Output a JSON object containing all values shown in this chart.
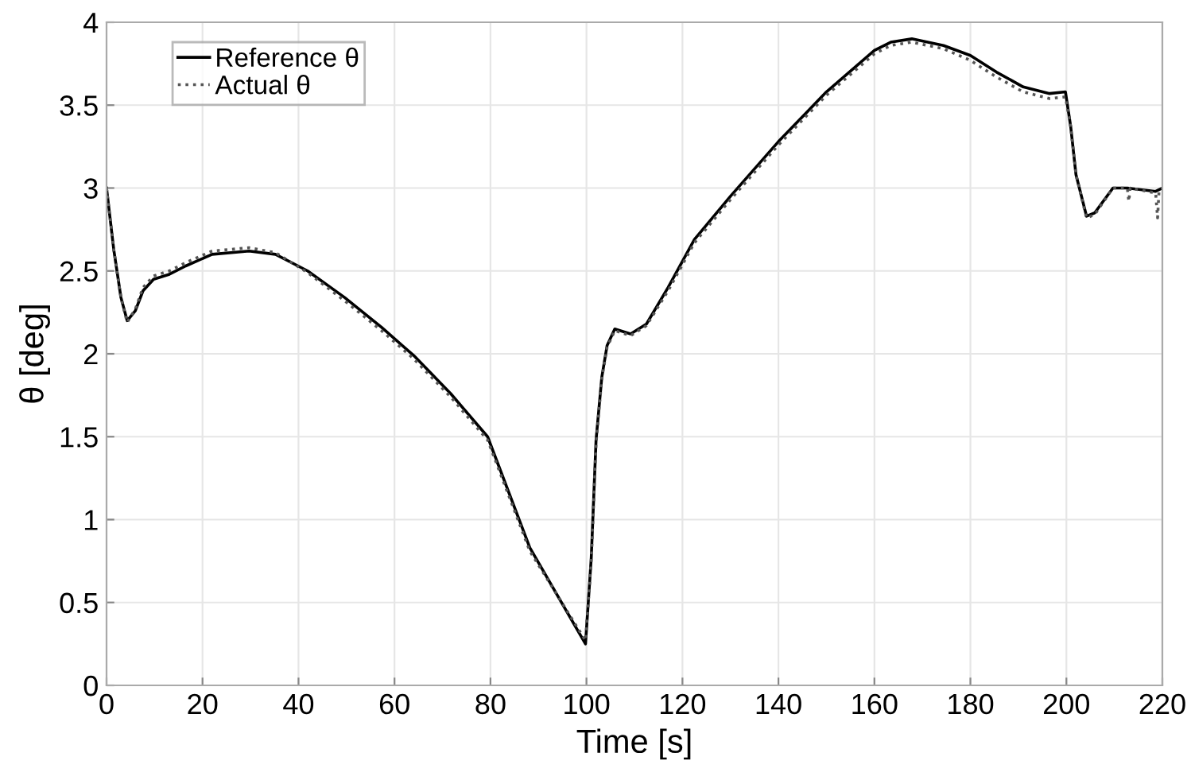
{
  "chart_data": {
    "type": "line",
    "xlabel": "Time [s]",
    "ylabel": "θ [deg]",
    "xlim": [
      0,
      220
    ],
    "ylim": [
      0,
      4
    ],
    "xticks": [
      0,
      20,
      40,
      60,
      80,
      100,
      120,
      140,
      160,
      180,
      200,
      220
    ],
    "yticks": [
      0,
      0.5,
      1,
      1.5,
      2,
      2.5,
      3,
      3.5,
      4
    ],
    "grid": true,
    "legend": "top left",
    "marker": "none",
    "series": [
      {
        "name": "Reference θ",
        "color": "#000000",
        "line_style": "solid",
        "x": [
          0,
          1.5,
          3,
          4.3,
          6,
          7.6,
          9.8,
          13.1,
          16.5,
          22,
          29.7,
          35.2,
          41.9,
          49.6,
          57.3,
          64,
          71.7,
          79.4,
          88.2,
          99.8,
          101,
          102,
          103.2,
          104.3,
          105.9,
          109.2,
          112.5,
          117,
          122.5,
          130,
          140,
          150,
          160,
          163.4,
          167.8,
          174.4,
          180,
          185.4,
          191,
          196.5,
          199.8,
          200.9,
          202,
          204.2,
          205.9,
          209.7,
          212.7,
          218.6,
          220
        ],
        "values": [
          3.0,
          2.63,
          2.34,
          2.2,
          2.26,
          2.38,
          2.45,
          2.48,
          2.53,
          2.6,
          2.62,
          2.6,
          2.5,
          2.34,
          2.16,
          1.99,
          1.76,
          1.5,
          0.83,
          0.25,
          0.77,
          1.48,
          1.86,
          2.05,
          2.15,
          2.12,
          2.18,
          2.4,
          2.69,
          2.95,
          3.28,
          3.58,
          3.83,
          3.88,
          3.9,
          3.86,
          3.8,
          3.7,
          3.61,
          3.57,
          3.58,
          3.37,
          3.08,
          2.83,
          2.85,
          3.0,
          3.0,
          2.98,
          3.0
        ]
      },
      {
        "name": "Actual θ",
        "color": "#555555",
        "line_style": "dotted",
        "x": [
          0,
          1.5,
          3,
          4.3,
          6,
          7.6,
          9.8,
          13.1,
          16.5,
          22,
          29.7,
          35.2,
          41.9,
          49.6,
          57.3,
          64,
          71.7,
          79.4,
          88.2,
          99.8,
          101,
          102,
          103.2,
          104.3,
          105.9,
          109.2,
          112.5,
          117,
          122.5,
          130,
          140,
          150,
          160,
          163.4,
          167.8,
          174.4,
          180,
          185.4,
          191,
          196.5,
          199.8,
          200.9,
          202,
          204.2,
          205.9,
          209.7,
          212.7,
          213,
          213.3,
          218.6,
          219,
          219.3,
          220
        ],
        "values": [
          3.0,
          2.63,
          2.34,
          2.19,
          2.27,
          2.4,
          2.47,
          2.5,
          2.55,
          2.62,
          2.64,
          2.61,
          2.49,
          2.32,
          2.14,
          1.97,
          1.74,
          1.48,
          0.81,
          0.27,
          0.75,
          1.46,
          1.85,
          2.04,
          2.14,
          2.11,
          2.17,
          2.38,
          2.67,
          2.93,
          3.26,
          3.56,
          3.81,
          3.86,
          3.88,
          3.84,
          3.77,
          3.67,
          3.58,
          3.54,
          3.55,
          3.37,
          3.08,
          2.82,
          2.84,
          3.0,
          3.0,
          2.92,
          3.0,
          2.97,
          2.82,
          2.98,
          3.0
        ]
      }
    ]
  }
}
